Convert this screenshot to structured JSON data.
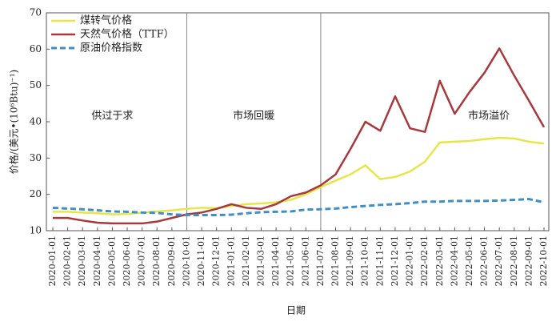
{
  "chart_data": {
    "type": "line",
    "y_label": "价格/(美元•(10⁶Btu)⁻¹)",
    "x_label": "日期",
    "annotations": [
      "供过于求",
      "市场回暖",
      "市场溢价"
    ],
    "categories": [
      "2020-01-01",
      "2020-02-01",
      "2020-03-01",
      "2020-04-01",
      "2020-05-01",
      "2020-06-01",
      "2020-07-01",
      "2020-08-01",
      "2020-09-01",
      "2020-10-01",
      "2020-11-01",
      "2020-12-01",
      "2021-01-01",
      "2021-02-01",
      "2021-03-01",
      "2021-04-01",
      "2021-05-01",
      "2021-06-01",
      "2021-07-01",
      "2021-08-01",
      "2021-09-01",
      "2021-10-01",
      "2021-11-01",
      "2021-12-01",
      "2022-01-01",
      "2022-02-01",
      "2022-03-01",
      "2022-04-01",
      "2022-05-01",
      "2022-06-01",
      "2022-07-01",
      "2022-08-01",
      "2022-09-01",
      "2022-10-01"
    ],
    "series": [
      {
        "name": "煤转气价格",
        "color": "#e6e64a",
        "values": [
          15.2,
          15.2,
          15,
          14.8,
          14.5,
          14.6,
          15,
          15.3,
          15.6,
          16,
          16.3,
          16.2,
          16.8,
          17.3,
          17.5,
          17.8,
          18.5,
          20,
          22,
          23.8,
          25.5,
          28,
          24.2,
          24.8,
          26.3,
          29,
          34.3,
          34.5,
          34.7,
          35.2,
          35.6,
          35.4,
          34.5,
          34
        ]
      },
      {
        "name": "天然气价格（TTF）",
        "color": "#a8383c",
        "values": [
          13.5,
          13.5,
          12.8,
          12.2,
          12,
          12,
          12,
          12.5,
          13.5,
          14.5,
          15,
          16,
          17.3,
          16.3,
          16,
          17.3,
          19.5,
          20.5,
          22.5,
          25.5,
          32.5,
          40,
          37.5,
          47,
          38.2,
          37.2,
          51.3,
          42.2,
          48.2,
          53.5,
          60.2,
          52.7,
          45.7,
          38.5
        ]
      },
      {
        "name": "原油价格指数",
        "color": "#3f8fc4",
        "dashed": true,
        "values": [
          16.3,
          16.1,
          15.9,
          15.6,
          15.3,
          15.2,
          15,
          14.9,
          14.5,
          14.3,
          14.3,
          14.3,
          14.4,
          14.8,
          15.1,
          15.2,
          15.3,
          15.8,
          15.9,
          16.1,
          16.5,
          16.8,
          17.1,
          17.3,
          17.6,
          18,
          18,
          18.2,
          18.2,
          18.2,
          18.3,
          18.5,
          18.7,
          17.8
        ]
      }
    ],
    "ylim": [
      10,
      70
    ],
    "yticks": [
      10,
      20,
      30,
      40,
      50,
      60,
      70
    ],
    "legend": "top-left"
  }
}
